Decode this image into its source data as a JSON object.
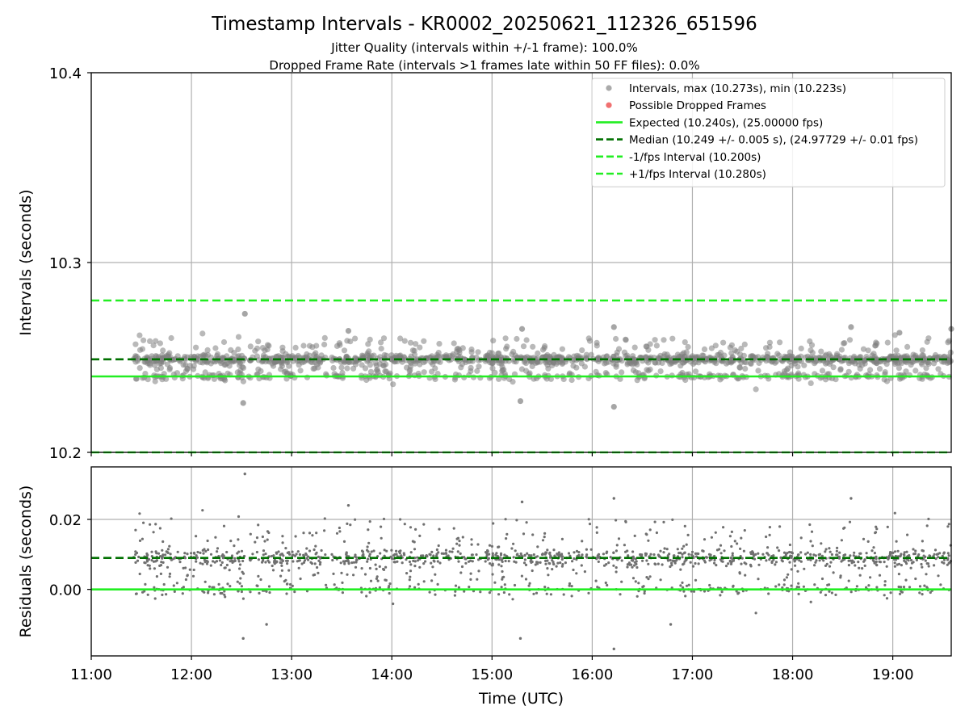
{
  "figure": {
    "title": "Timestamp Intervals - KR0002_20250621_112326_651596",
    "subtitle_1": "Jitter Quality (intervals within +/-1 frame): 100.0%",
    "subtitle_2": "Dropped Frame Rate (intervals >1 frames late within 50 FF files): 0.0%"
  },
  "colors": {
    "points": "#808080",
    "dropped": "#f07070",
    "expected": "#22ee22",
    "median": "#007000",
    "fps_band": "#22ee22",
    "grid": "#b0b0b0"
  },
  "chart_data": [
    {
      "type": "scatter",
      "name": "intervals",
      "xlabel": "",
      "ylabel": "Intervals (seconds)",
      "xlim": [
        "11:00",
        "19:35"
      ],
      "ylim": [
        10.2,
        10.4
      ],
      "yticks": [
        "10.2",
        "10.3",
        "10.4"
      ],
      "grid": true,
      "legend": {
        "placement": "top-right",
        "entries": [
          {
            "label": "Intervals, max (10.273s), min (10.223s)",
            "marker": "point",
            "color": "#aaaaaa"
          },
          {
            "label": "Possible Dropped Frames",
            "marker": "point",
            "color": "#f07070"
          },
          {
            "label": "Expected (10.240s), (25.00000 fps)",
            "marker": "solid",
            "color": "#22ee22"
          },
          {
            "label": "Median (10.249 +/- 0.005 s), (24.97729 +/- 0.01 fps)",
            "marker": "dashed",
            "color": "#007000"
          },
          {
            "label": "-1/fps Interval (10.200s)",
            "marker": "dashed",
            "color": "#22ee22"
          },
          {
            "label": "+1/fps Interval (10.280s)",
            "marker": "dashed",
            "color": "#22ee22"
          }
        ]
      },
      "reference_lines": [
        {
          "name": "Expected",
          "y": 10.24,
          "style": "solid",
          "color": "#22ee22"
        },
        {
          "name": "Median",
          "y": 10.249,
          "style": "dashed",
          "color": "#007000"
        },
        {
          "name": "-1/fps Interval",
          "y": 10.2,
          "style": "dashed",
          "color": "#22ee22"
        },
        {
          "name": "+1/fps Interval",
          "y": 10.28,
          "style": "dashed",
          "color": "#22ee22"
        }
      ],
      "data_summary": {
        "x_start": "11:25",
        "x_end": "19:35",
        "max": 10.273,
        "min": 10.223,
        "median": 10.249,
        "expected": 10.24
      },
      "outliers": [
        {
          "x": "12:32",
          "y": 10.273
        },
        {
          "x": "12:31",
          "y": 10.226
        },
        {
          "x": "13:34",
          "y": 10.264
        },
        {
          "x": "15:18",
          "y": 10.265
        },
        {
          "x": "15:17",
          "y": 10.227
        },
        {
          "x": "16:13",
          "y": 10.266
        },
        {
          "x": "16:13",
          "y": 10.224
        },
        {
          "x": "18:35",
          "y": 10.266
        },
        {
          "x": "19:04",
          "y": 10.263
        },
        {
          "x": "19:35",
          "y": 10.265
        }
      ]
    },
    {
      "type": "scatter",
      "name": "residuals",
      "xlabel": "Time (UTC)",
      "ylabel": "Residuals (seconds)",
      "xlim": [
        "11:00",
        "19:35"
      ],
      "ylim": [
        -0.019,
        0.035
      ],
      "xticks": [
        "11:00",
        "12:00",
        "13:00",
        "14:00",
        "15:00",
        "16:00",
        "17:00",
        "18:00",
        "19:00"
      ],
      "yticks": [
        "0.00",
        "0.02"
      ],
      "grid": true,
      "reference_lines": [
        {
          "name": "Expected",
          "y": 0.0,
          "style": "solid",
          "color": "#22ee22"
        },
        {
          "name": "Median",
          "y": 0.009,
          "style": "dashed",
          "color": "#007000"
        }
      ],
      "outliers": [
        {
          "x": "12:32",
          "y": 0.033
        },
        {
          "x": "12:31",
          "y": -0.014
        },
        {
          "x": "13:34",
          "y": 0.024
        },
        {
          "x": "15:18",
          "y": 0.025
        },
        {
          "x": "15:17",
          "y": -0.014
        },
        {
          "x": "16:13",
          "y": 0.026
        },
        {
          "x": "16:13",
          "y": -0.017
        },
        {
          "x": "18:35",
          "y": 0.026
        },
        {
          "x": "16:47",
          "y": -0.01
        },
        {
          "x": "12:45",
          "y": -0.01
        }
      ]
    }
  ]
}
